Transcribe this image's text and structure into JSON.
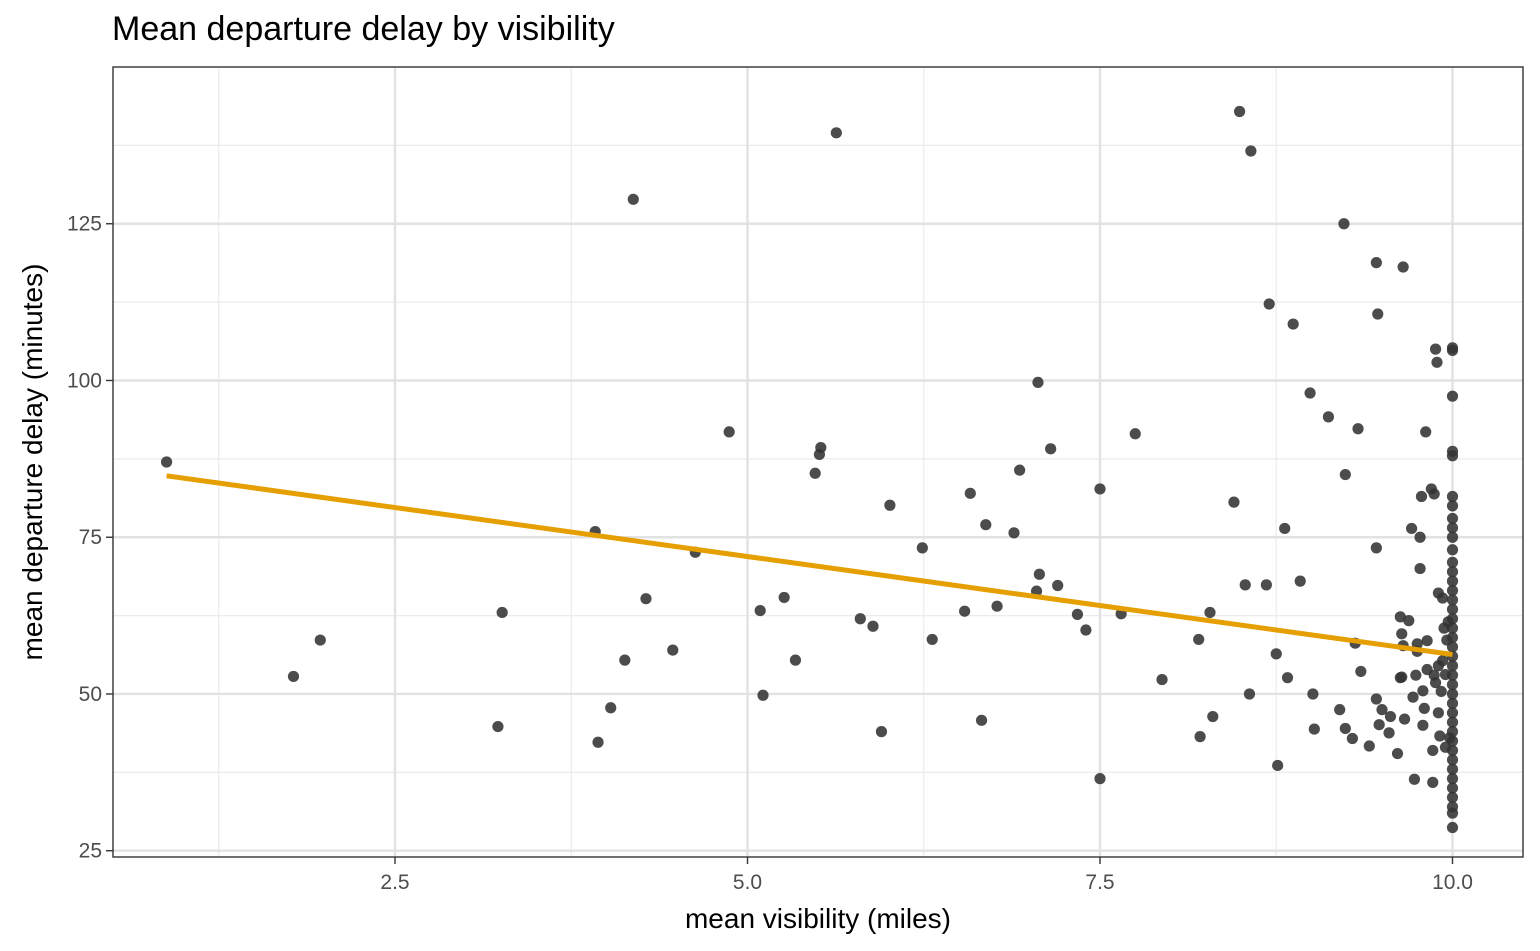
{
  "chart_data": {
    "type": "scatter",
    "title": "Mean departure delay by visibility",
    "xlabel": "mean visibility (miles)",
    "ylabel": "mean departure delay (minutes)",
    "xlim": [
      0.5,
      10.5
    ],
    "ylim": [
      24,
      150
    ],
    "x_ticks": [
      2.5,
      5.0,
      7.5,
      10.0
    ],
    "x_tick_labels": [
      "2.5",
      "5.0",
      "7.5",
      "10.0"
    ],
    "y_ticks": [
      25,
      50,
      75,
      100,
      125
    ],
    "y_tick_labels": [
      "25",
      "50",
      "75",
      "100",
      "125"
    ],
    "grid": true,
    "point_color": "#333333",
    "line_color": "#E69F00",
    "trend_line": {
      "x": [
        0.88,
        10.0
      ],
      "y": [
        84.8,
        56.3
      ]
    },
    "points": [
      [
        0.88,
        87.0
      ],
      [
        1.78,
        52.8
      ],
      [
        1.97,
        58.6
      ],
      [
        3.23,
        44.8
      ],
      [
        3.26,
        63.0
      ],
      [
        3.92,
        75.9
      ],
      [
        3.94,
        42.3
      ],
      [
        4.03,
        47.8
      ],
      [
        4.13,
        55.4
      ],
      [
        4.19,
        128.9
      ],
      [
        4.28,
        65.2
      ],
      [
        4.47,
        57.0
      ],
      [
        4.63,
        72.6
      ],
      [
        4.87,
        91.8
      ],
      [
        5.09,
        63.3
      ],
      [
        5.11,
        49.8
      ],
      [
        5.26,
        65.4
      ],
      [
        5.34,
        55.4
      ],
      [
        5.48,
        85.2
      ],
      [
        5.51,
        88.2
      ],
      [
        5.52,
        89.3
      ],
      [
        5.63,
        139.5
      ],
      [
        5.8,
        62.0
      ],
      [
        5.89,
        60.8
      ],
      [
        5.95,
        44.0
      ],
      [
        6.01,
        80.1
      ],
      [
        6.24,
        73.3
      ],
      [
        6.31,
        58.7
      ],
      [
        6.54,
        63.2
      ],
      [
        6.58,
        82.0
      ],
      [
        6.66,
        45.8
      ],
      [
        6.69,
        77.0
      ],
      [
        6.77,
        64.0
      ],
      [
        6.89,
        75.7
      ],
      [
        6.93,
        85.7
      ],
      [
        7.05,
        66.4
      ],
      [
        7.06,
        99.7
      ],
      [
        7.07,
        69.1
      ],
      [
        7.15,
        89.1
      ],
      [
        7.2,
        67.3
      ],
      [
        7.34,
        62.7
      ],
      [
        7.4,
        60.2
      ],
      [
        7.5,
        36.5
      ],
      [
        7.5,
        82.7
      ],
      [
        7.65,
        62.8
      ],
      [
        7.75,
        91.5
      ],
      [
        7.94,
        52.3
      ],
      [
        8.2,
        58.7
      ],
      [
        8.21,
        43.2
      ],
      [
        8.28,
        63.0
      ],
      [
        8.3,
        46.4
      ],
      [
        8.45,
        80.6
      ],
      [
        8.49,
        142.9
      ],
      [
        8.53,
        67.4
      ],
      [
        8.56,
        50.0
      ],
      [
        8.57,
        136.6
      ],
      [
        8.68,
        67.4
      ],
      [
        8.7,
        112.2
      ],
      [
        8.75,
        56.4
      ],
      [
        8.76,
        38.6
      ],
      [
        8.81,
        76.4
      ],
      [
        8.83,
        52.6
      ],
      [
        8.87,
        109.0
      ],
      [
        8.92,
        68.0
      ],
      [
        8.99,
        98.0
      ],
      [
        9.01,
        50.0
      ],
      [
        9.02,
        44.4
      ],
      [
        9.12,
        94.2
      ],
      [
        9.2,
        47.5
      ],
      [
        9.23,
        125.0
      ],
      [
        9.24,
        44.5
      ],
      [
        9.24,
        85.0
      ],
      [
        9.29,
        42.9
      ],
      [
        9.31,
        58.1
      ],
      [
        9.33,
        92.3
      ],
      [
        9.35,
        53.6
      ],
      [
        9.41,
        41.7
      ],
      [
        9.46,
        73.3
      ],
      [
        9.46,
        49.2
      ],
      [
        9.46,
        118.8
      ],
      [
        9.47,
        110.6
      ],
      [
        9.48,
        45.1
      ],
      [
        9.5,
        47.5
      ],
      [
        9.55,
        43.8
      ],
      [
        9.56,
        46.4
      ],
      [
        9.61,
        40.5
      ],
      [
        9.63,
        52.6
      ],
      [
        9.63,
        62.3
      ],
      [
        9.64,
        52.7
      ],
      [
        9.64,
        59.6
      ],
      [
        9.65,
        118.1
      ],
      [
        9.65,
        57.7
      ],
      [
        9.66,
        46.0
      ],
      [
        9.69,
        61.7
      ],
      [
        9.71,
        76.4
      ],
      [
        9.72,
        49.5
      ],
      [
        9.73,
        36.4
      ],
      [
        9.74,
        53.0
      ],
      [
        9.75,
        56.8
      ],
      [
        9.75,
        58.0
      ],
      [
        9.77,
        75.0
      ],
      [
        9.77,
        70.0
      ],
      [
        9.78,
        81.5
      ],
      [
        9.79,
        45.0
      ],
      [
        9.79,
        50.5
      ],
      [
        9.8,
        47.7
      ],
      [
        9.81,
        91.8
      ],
      [
        9.82,
        53.9
      ],
      [
        9.82,
        58.5
      ],
      [
        9.85,
        82.7
      ],
      [
        9.86,
        35.9
      ],
      [
        9.86,
        41.0
      ],
      [
        9.87,
        53.0
      ],
      [
        9.87,
        81.9
      ],
      [
        9.88,
        105.0
      ],
      [
        9.88,
        51.8
      ],
      [
        9.89,
        102.9
      ],
      [
        9.9,
        66.1
      ],
      [
        9.9,
        54.5
      ],
      [
        9.9,
        47.0
      ],
      [
        9.91,
        43.3
      ],
      [
        9.92,
        50.4
      ],
      [
        9.93,
        65.3
      ],
      [
        9.93,
        55.3
      ],
      [
        9.94,
        60.5
      ],
      [
        9.95,
        53.1
      ],
      [
        9.95,
        41.5
      ],
      [
        9.96,
        58.6
      ],
      [
        9.97,
        61.5
      ],
      [
        9.98,
        43.0
      ],
      [
        10.0,
        28.7
      ],
      [
        10.0,
        31.0
      ],
      [
        10.0,
        32.0
      ],
      [
        10.0,
        33.5
      ],
      [
        10.0,
        35.0
      ],
      [
        10.0,
        36.5
      ],
      [
        10.0,
        38.0
      ],
      [
        10.0,
        39.5
      ],
      [
        10.0,
        41.0
      ],
      [
        10.0,
        42.5
      ],
      [
        10.0,
        44.0
      ],
      [
        10.0,
        45.5
      ],
      [
        10.0,
        47.0
      ],
      [
        10.0,
        48.5
      ],
      [
        10.0,
        50.0
      ],
      [
        10.0,
        51.5
      ],
      [
        10.0,
        53.0
      ],
      [
        10.0,
        54.5
      ],
      [
        10.0,
        56.0
      ],
      [
        10.0,
        57.5
      ],
      [
        10.0,
        59.0
      ],
      [
        10.0,
        60.5
      ],
      [
        10.0,
        62.0
      ],
      [
        10.0,
        63.5
      ],
      [
        10.0,
        65.0
      ],
      [
        10.0,
        66.5
      ],
      [
        10.0,
        68.0
      ],
      [
        10.0,
        69.5
      ],
      [
        10.0,
        71.0
      ],
      [
        10.0,
        73.0
      ],
      [
        10.0,
        75.0
      ],
      [
        10.0,
        76.5
      ],
      [
        10.0,
        78.0
      ],
      [
        10.0,
        80.0
      ],
      [
        10.0,
        81.5
      ],
      [
        10.0,
        88.0
      ],
      [
        10.0,
        88.7
      ],
      [
        10.0,
        97.5
      ],
      [
        10.0,
        104.8
      ],
      [
        10.0,
        105.2
      ]
    ]
  }
}
